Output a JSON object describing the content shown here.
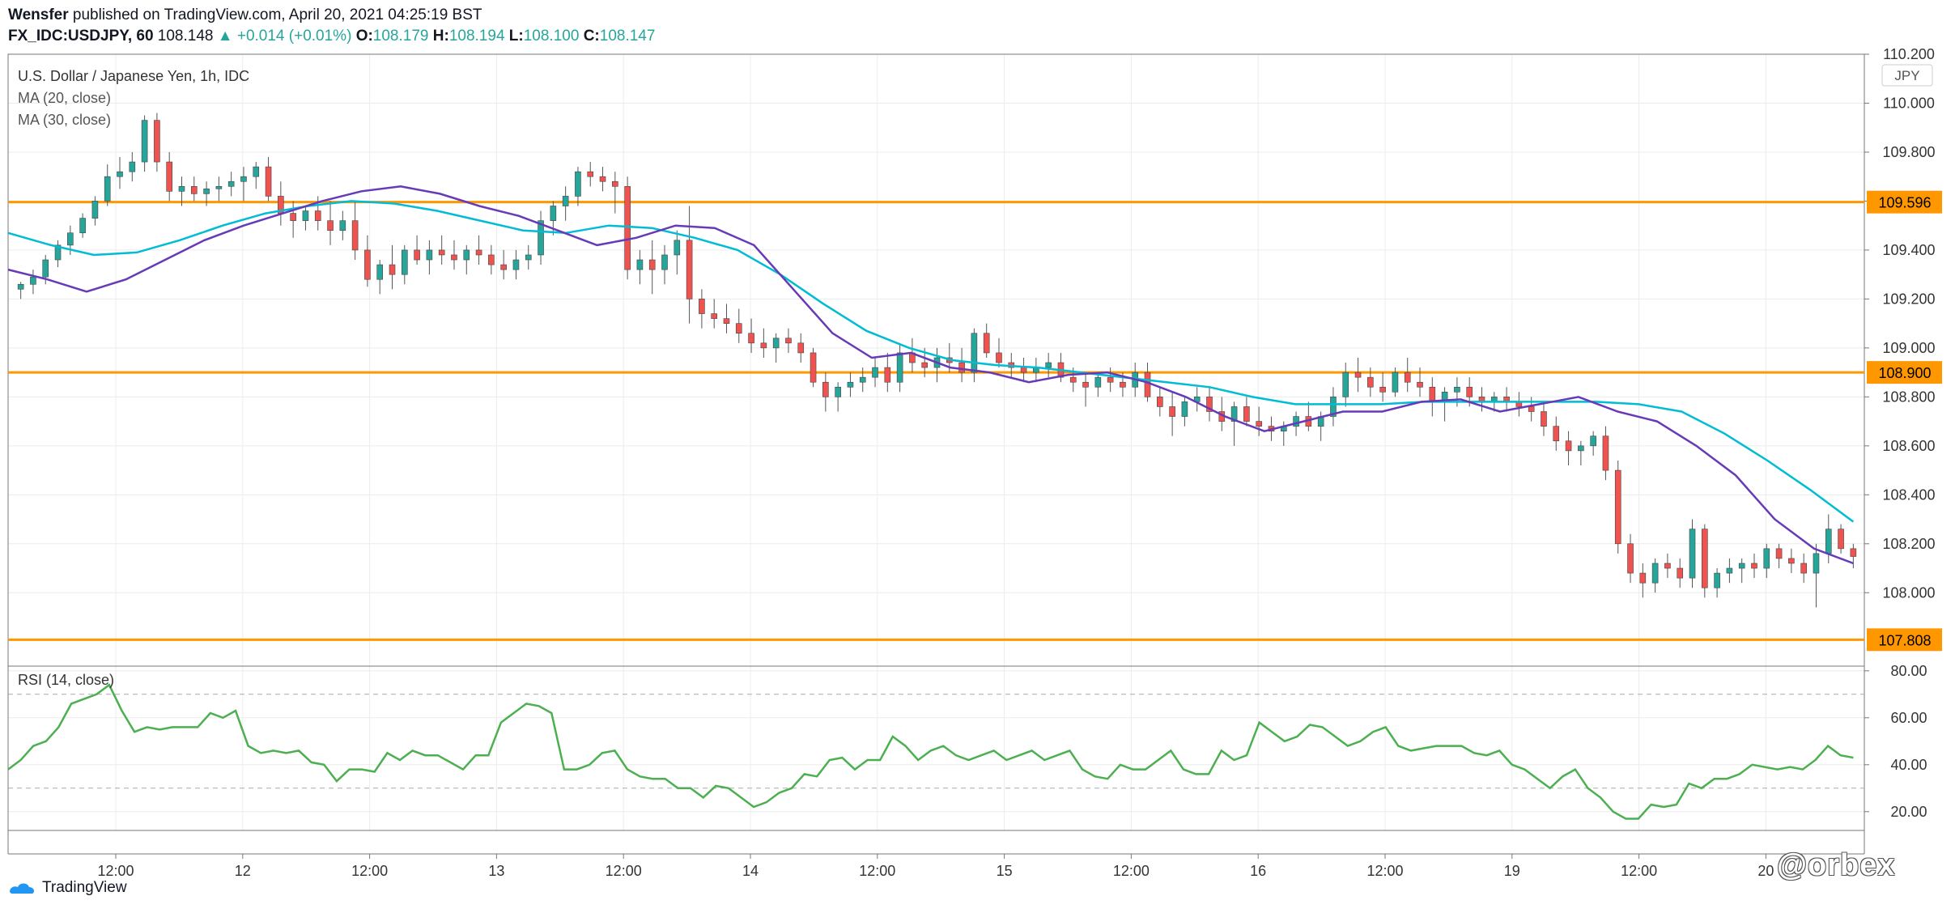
{
  "header": {
    "publisher": "Wensfer",
    "published_text": " published on TradingView.com, April 20, 2021 04:25:19 BST",
    "symbol": "FX_IDC:USDJPY, 60",
    "last": "108.148",
    "change": "▲ +0.014 (+0.01%)",
    "o_label": "O:",
    "o_val": "108.179",
    "h_label": "H:",
    "h_val": "108.194",
    "l_label": "L:",
    "l_val": "108.100",
    "c_label": "C:",
    "c_val": "108.147"
  },
  "footer": {
    "brand": "TradingView",
    "watermark": "@orbex"
  },
  "colors": {
    "up": "#26a69a",
    "down": "#ef5350",
    "ma20": "#673ab7",
    "ma30": "#00bcd4",
    "rsi": "#4caf50",
    "level": "#ff9800"
  },
  "chart_data": [
    {
      "type": "candlestick",
      "title": "U.S. Dollar / Japanese Yen, 1h, IDC",
      "indicators": [
        "MA (20, close)",
        "MA (30, close)"
      ],
      "currency": "JPY",
      "ylim": [
        107.7,
        110.2
      ],
      "y_ticks": [
        "110.200",
        "110.000",
        "109.800",
        "109.600",
        "109.400",
        "109.200",
        "109.000",
        "108.800",
        "108.600",
        "108.400",
        "108.200",
        "108.000"
      ],
      "x_ticks": [
        "12:00",
        "12",
        "12:00",
        "13",
        "12:00",
        "14",
        "12:00",
        "15",
        "12:00",
        "16",
        "12:00",
        "19",
        "12:00",
        "20"
      ],
      "levels": [
        {
          "value": 109.596,
          "label": "109.596"
        },
        {
          "value": 108.9,
          "label": "108.900"
        },
        {
          "value": 107.808,
          "label": "107.808"
        }
      ],
      "ma20": [
        109.32,
        109.28,
        109.23,
        109.28,
        109.36,
        109.44,
        109.5,
        109.55,
        109.6,
        109.64,
        109.66,
        109.63,
        109.58,
        109.54,
        109.48,
        109.42,
        109.45,
        109.5,
        109.49,
        109.42,
        109.24,
        109.06,
        108.96,
        108.98,
        108.92,
        108.9,
        108.86,
        108.89,
        108.9,
        108.86,
        108.8,
        108.72,
        108.66,
        108.7,
        108.74,
        108.74,
        108.78,
        108.79,
        108.74,
        108.77,
        108.8,
        108.74,
        108.7,
        108.6,
        108.48,
        108.3,
        108.18,
        108.12
      ],
      "ma30": [
        109.47,
        109.42,
        109.38,
        109.39,
        109.44,
        109.5,
        109.55,
        109.58,
        109.6,
        109.59,
        109.56,
        109.52,
        109.48,
        109.47,
        109.5,
        109.49,
        109.45,
        109.4,
        109.3,
        109.18,
        109.07,
        109.0,
        108.95,
        108.93,
        108.92,
        108.9,
        108.88,
        108.86,
        108.84,
        108.8,
        108.77,
        108.77,
        108.77,
        108.78,
        108.78,
        108.78,
        108.78,
        108.78,
        108.77,
        108.74,
        108.65,
        108.54,
        108.42,
        108.29
      ],
      "candles": [
        [
          109.24,
          109.27,
          109.2,
          109.26
        ],
        [
          109.26,
          109.32,
          109.22,
          109.29
        ],
        [
          109.29,
          109.38,
          109.26,
          109.36
        ],
        [
          109.36,
          109.44,
          109.33,
          109.42
        ],
        [
          109.42,
          109.5,
          109.38,
          109.47
        ],
        [
          109.47,
          109.55,
          109.45,
          109.53
        ],
        [
          109.53,
          109.62,
          109.5,
          109.6
        ],
        [
          109.6,
          109.75,
          109.58,
          109.7
        ],
        [
          109.7,
          109.78,
          109.65,
          109.72
        ],
        [
          109.72,
          109.8,
          109.68,
          109.76
        ],
        [
          109.76,
          109.95,
          109.72,
          109.93
        ],
        [
          109.93,
          109.96,
          109.72,
          109.76
        ],
        [
          109.76,
          109.8,
          109.6,
          109.64
        ],
        [
          109.64,
          109.7,
          109.58,
          109.66
        ],
        [
          109.66,
          109.7,
          109.6,
          109.63
        ],
        [
          109.63,
          109.68,
          109.58,
          109.65
        ],
        [
          109.65,
          109.7,
          109.6,
          109.66
        ],
        [
          109.66,
          109.72,
          109.62,
          109.68
        ],
        [
          109.68,
          109.74,
          109.6,
          109.7
        ],
        [
          109.7,
          109.76,
          109.65,
          109.74
        ],
        [
          109.74,
          109.78,
          109.6,
          109.62
        ],
        [
          109.62,
          109.68,
          109.5,
          109.55
        ],
        [
          109.55,
          109.6,
          109.45,
          109.52
        ],
        [
          109.52,
          109.58,
          109.48,
          109.56
        ],
        [
          109.56,
          109.62,
          109.48,
          109.52
        ],
        [
          109.52,
          109.6,
          109.42,
          109.48
        ],
        [
          109.48,
          109.56,
          109.44,
          109.52
        ],
        [
          109.52,
          109.6,
          109.36,
          109.4
        ],
        [
          109.4,
          109.46,
          109.25,
          109.28
        ],
        [
          109.28,
          109.36,
          109.22,
          109.34
        ],
        [
          109.34,
          109.42,
          109.24,
          109.3
        ],
        [
          109.3,
          109.42,
          109.26,
          109.4
        ],
        [
          109.4,
          109.46,
          109.34,
          109.36
        ],
        [
          109.36,
          109.44,
          109.3,
          109.4
        ],
        [
          109.4,
          109.46,
          109.34,
          109.38
        ],
        [
          109.38,
          109.44,
          109.32,
          109.36
        ],
        [
          109.36,
          109.42,
          109.3,
          109.4
        ],
        [
          109.4,
          109.46,
          109.34,
          109.38
        ],
        [
          109.38,
          109.42,
          109.3,
          109.34
        ],
        [
          109.34,
          109.4,
          109.28,
          109.32
        ],
        [
          109.32,
          109.4,
          109.28,
          109.36
        ],
        [
          109.36,
          109.42,
          109.32,
          109.38
        ],
        [
          109.38,
          109.56,
          109.34,
          109.52
        ],
        [
          109.52,
          109.6,
          109.46,
          109.58
        ],
        [
          109.58,
          109.66,
          109.52,
          109.62
        ],
        [
          109.62,
          109.74,
          109.58,
          109.72
        ],
        [
          109.72,
          109.76,
          109.66,
          109.7
        ],
        [
          109.7,
          109.74,
          109.64,
          109.68
        ],
        [
          109.68,
          109.72,
          109.55,
          109.66
        ],
        [
          109.66,
          109.7,
          109.28,
          109.32
        ],
        [
          109.32,
          109.4,
          109.26,
          109.36
        ],
        [
          109.36,
          109.44,
          109.22,
          109.32
        ],
        [
          109.32,
          109.42,
          109.26,
          109.38
        ],
        [
          109.38,
          109.48,
          109.3,
          109.44
        ],
        [
          109.44,
          109.58,
          109.1,
          109.2
        ],
        [
          109.2,
          109.24,
          109.08,
          109.14
        ],
        [
          109.14,
          109.2,
          109.08,
          109.12
        ],
        [
          109.12,
          109.18,
          109.06,
          109.1
        ],
        [
          109.1,
          109.16,
          109.02,
          109.06
        ],
        [
          109.06,
          109.12,
          108.98,
          109.02
        ],
        [
          109.02,
          109.08,
          108.96,
          109.0
        ],
        [
          109.0,
          109.06,
          108.94,
          109.04
        ],
        [
          109.04,
          109.08,
          108.98,
          109.02
        ],
        [
          109.02,
          109.06,
          108.94,
          108.98
        ],
        [
          108.98,
          109.0,
          108.84,
          108.86
        ],
        [
          108.86,
          108.9,
          108.74,
          108.8
        ],
        [
          108.8,
          108.86,
          108.74,
          108.84
        ],
        [
          108.84,
          108.9,
          108.8,
          108.86
        ],
        [
          108.86,
          108.92,
          108.82,
          108.88
        ],
        [
          108.88,
          108.96,
          108.84,
          108.92
        ],
        [
          108.92,
          108.98,
          108.82,
          108.86
        ],
        [
          108.86,
          109.02,
          108.82,
          108.98
        ],
        [
          108.98,
          109.04,
          108.9,
          108.94
        ],
        [
          108.94,
          109.0,
          108.88,
          108.92
        ],
        [
          108.92,
          109.0,
          108.86,
          108.96
        ],
        [
          108.96,
          109.02,
          108.9,
          108.94
        ],
        [
          108.94,
          109.0,
          108.86,
          108.9
        ],
        [
          108.9,
          109.08,
          108.86,
          109.06
        ],
        [
          109.06,
          109.1,
          108.96,
          108.98
        ],
        [
          108.98,
          109.04,
          108.92,
          108.94
        ],
        [
          108.94,
          108.98,
          108.88,
          108.92
        ],
        [
          108.92,
          108.96,
          108.86,
          108.9
        ],
        [
          108.9,
          108.96,
          108.86,
          108.92
        ],
        [
          108.92,
          108.98,
          108.88,
          108.94
        ],
        [
          108.94,
          108.98,
          108.86,
          108.88
        ],
        [
          108.88,
          108.92,
          108.82,
          108.86
        ],
        [
          108.86,
          108.9,
          108.76,
          108.84
        ],
        [
          108.84,
          108.9,
          108.8,
          108.88
        ],
        [
          108.88,
          108.92,
          108.82,
          108.86
        ],
        [
          108.86,
          108.9,
          108.8,
          108.84
        ],
        [
          108.84,
          108.94,
          108.8,
          108.9
        ],
        [
          108.9,
          108.94,
          108.78,
          108.8
        ],
        [
          108.8,
          108.84,
          108.72,
          108.76
        ],
        [
          108.76,
          108.82,
          108.64,
          108.72
        ],
        [
          108.72,
          108.8,
          108.68,
          108.78
        ],
        [
          108.78,
          108.84,
          108.74,
          108.8
        ],
        [
          108.8,
          108.84,
          108.7,
          108.74
        ],
        [
          108.74,
          108.8,
          108.66,
          108.7
        ],
        [
          108.7,
          108.78,
          108.6,
          108.76
        ],
        [
          108.76,
          108.8,
          108.68,
          108.7
        ],
        [
          108.7,
          108.76,
          108.64,
          108.68
        ],
        [
          108.68,
          108.72,
          108.62,
          108.66
        ],
        [
          108.66,
          108.7,
          108.6,
          108.68
        ],
        [
          108.68,
          108.74,
          108.64,
          108.72
        ],
        [
          108.72,
          108.78,
          108.66,
          108.68
        ],
        [
          108.68,
          108.74,
          108.62,
          108.72
        ],
        [
          108.72,
          108.84,
          108.68,
          108.8
        ],
        [
          108.8,
          108.94,
          108.76,
          108.9
        ],
        [
          108.9,
          108.96,
          108.82,
          108.88
        ],
        [
          108.88,
          108.92,
          108.8,
          108.84
        ],
        [
          108.84,
          108.9,
          108.78,
          108.82
        ],
        [
          108.82,
          108.92,
          108.8,
          108.9
        ],
        [
          108.9,
          108.96,
          108.82,
          108.86
        ],
        [
          108.86,
          108.92,
          108.8,
          108.84
        ],
        [
          108.84,
          108.88,
          108.72,
          108.78
        ],
        [
          108.78,
          108.84,
          108.7,
          108.82
        ],
        [
          108.82,
          108.88,
          108.76,
          108.84
        ],
        [
          108.84,
          108.88,
          108.76,
          108.8
        ],
        [
          108.8,
          108.84,
          108.74,
          108.78
        ],
        [
          108.78,
          108.82,
          108.74,
          108.8
        ],
        [
          108.8,
          108.84,
          108.74,
          108.78
        ],
        [
          108.78,
          108.82,
          108.72,
          108.76
        ],
        [
          108.76,
          108.8,
          108.7,
          108.74
        ],
        [
          108.74,
          108.78,
          108.64,
          108.68
        ],
        [
          108.68,
          108.72,
          108.58,
          108.62
        ],
        [
          108.62,
          108.66,
          108.52,
          108.58
        ],
        [
          108.58,
          108.62,
          108.52,
          108.6
        ],
        [
          108.6,
          108.66,
          108.56,
          108.64
        ],
        [
          108.64,
          108.68,
          108.46,
          108.5
        ],
        [
          108.5,
          108.54,
          108.16,
          108.2
        ],
        [
          108.2,
          108.24,
          108.04,
          108.08
        ],
        [
          108.08,
          108.12,
          107.98,
          108.04
        ],
        [
          108.04,
          108.14,
          108.0,
          108.12
        ],
        [
          108.12,
          108.16,
          108.06,
          108.1
        ],
        [
          108.1,
          108.14,
          108.02,
          108.06
        ],
        [
          108.06,
          108.3,
          108.02,
          108.26
        ],
        [
          108.26,
          108.28,
          107.98,
          108.02
        ],
        [
          108.02,
          108.1,
          107.98,
          108.08
        ],
        [
          108.08,
          108.14,
          108.04,
          108.1
        ],
        [
          108.1,
          108.14,
          108.04,
          108.12
        ],
        [
          108.12,
          108.16,
          108.06,
          108.1
        ],
        [
          108.1,
          108.2,
          108.06,
          108.18
        ],
        [
          108.18,
          108.2,
          108.1,
          108.14
        ],
        [
          108.14,
          108.18,
          108.08,
          108.12
        ],
        [
          108.12,
          108.16,
          108.04,
          108.08
        ],
        [
          108.08,
          108.2,
          107.94,
          108.16
        ],
        [
          108.16,
          108.32,
          108.12,
          108.26
        ],
        [
          108.26,
          108.28,
          108.16,
          108.18
        ],
        [
          108.18,
          108.2,
          108.1,
          108.148
        ]
      ]
    },
    {
      "type": "line",
      "title": "RSI (14, close)",
      "ylim": [
        12,
        82
      ],
      "y_ticks": [
        "80.00",
        "60.00",
        "40.00",
        "20.00"
      ],
      "dashed_levels": [
        70,
        30
      ],
      "values": [
        38,
        42,
        48,
        50,
        56,
        66,
        68,
        70,
        74,
        63,
        54,
        56,
        55,
        56,
        56,
        56,
        62,
        60,
        63,
        48,
        45,
        46,
        45,
        46,
        41,
        40,
        33,
        38,
        38,
        37,
        45,
        42,
        46,
        44,
        44,
        41,
        38,
        44,
        44,
        58,
        62,
        66,
        65,
        62,
        38,
        38,
        40,
        45,
        46,
        38,
        35,
        34,
        34,
        30,
        30,
        26,
        31,
        30,
        26,
        22,
        24,
        28,
        30,
        36,
        35,
        42,
        43,
        38,
        42,
        42,
        52,
        48,
        42,
        46,
        48,
        44,
        42,
        44,
        46,
        42,
        44,
        46,
        42,
        44,
        46,
        38,
        35,
        34,
        40,
        38,
        38,
        42,
        46,
        38,
        36,
        36,
        46,
        42,
        44,
        58,
        54,
        50,
        52,
        57,
        56,
        52,
        48,
        50,
        54,
        56,
        48,
        46,
        47,
        48,
        48,
        48,
        45,
        44,
        46,
        40,
        38,
        34,
        30,
        35,
        38,
        30,
        26,
        20,
        17,
        17,
        23,
        22,
        23,
        32,
        30,
        34,
        34,
        36,
        40,
        39,
        38,
        39,
        38,
        42,
        48,
        44,
        43
      ]
    }
  ]
}
